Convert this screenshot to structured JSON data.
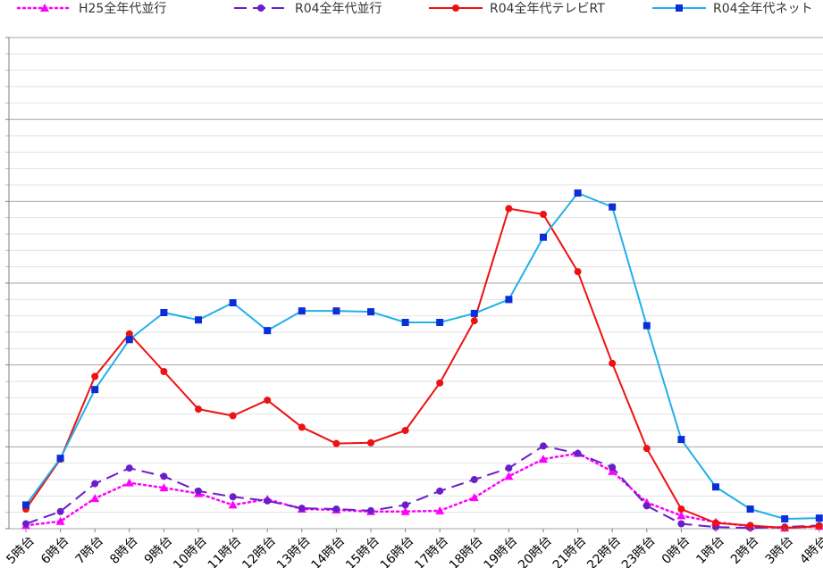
{
  "chart_data": {
    "type": "line",
    "title": "",
    "xlabel": "",
    "ylabel": "",
    "ylim": [
      0,
      60
    ],
    "grid": "horizontal",
    "legend_position": "top",
    "categories": [
      "5時台",
      "6時台",
      "7時台",
      "8時台",
      "9時台",
      "10時台",
      "11時台",
      "12時台",
      "13時台",
      "14時台",
      "15時台",
      "16時台",
      "17時台",
      "18時台",
      "19時台",
      "20時台",
      "21時台",
      "22時台",
      "23時台",
      "0時台",
      "1時台",
      "2時台",
      "3時台",
      "4時台"
    ],
    "series": [
      {
        "name": "H25全年代並行",
        "color": "#ff00ff",
        "style": "dotted",
        "marker": "triangle",
        "values": [
          0.4,
          0.9,
          3.7,
          5.6,
          5.0,
          4.3,
          2.9,
          3.6,
          2.4,
          2.3,
          2.1,
          2.1,
          2.2,
          3.8,
          6.4,
          8.5,
          9.2,
          7.0,
          3.2,
          1.6,
          0.8,
          0.3,
          0.1,
          0.3
        ]
      },
      {
        "name": "R04全年代並行",
        "color": "#6a1ec8",
        "style": "dashed",
        "marker": "circle",
        "values": [
          0.6,
          2.1,
          5.5,
          7.4,
          6.4,
          4.6,
          3.9,
          3.4,
          2.5,
          2.4,
          2.2,
          2.9,
          4.6,
          6.0,
          7.4,
          10.1,
          9.2,
          7.5,
          2.8,
          0.6,
          0.2,
          0.1,
          0.2,
          0.4
        ]
      },
      {
        "name": "R04全年代テレビRT",
        "color": "#ee1111",
        "style": "solid",
        "marker": "circle",
        "values": [
          2.4,
          8.5,
          18.6,
          23.8,
          19.2,
          14.6,
          13.8,
          15.7,
          12.4,
          10.4,
          10.5,
          12.0,
          17.8,
          25.4,
          39.1,
          38.4,
          31.4,
          20.2,
          9.8,
          2.4,
          0.7,
          0.4,
          0.1,
          0.3
        ]
      },
      {
        "name": "R04全年代ネット",
        "color": "#22b0e8",
        "style": "solid",
        "marker": "square",
        "values": [
          2.9,
          8.6,
          17.0,
          23.1,
          26.4,
          25.5,
          27.6,
          24.2,
          26.6,
          26.6,
          26.5,
          25.2,
          25.2,
          26.3,
          28.0,
          35.6,
          41.0,
          39.3,
          24.8,
          10.9,
          5.1,
          2.4,
          1.2,
          1.3
        ]
      }
    ]
  }
}
